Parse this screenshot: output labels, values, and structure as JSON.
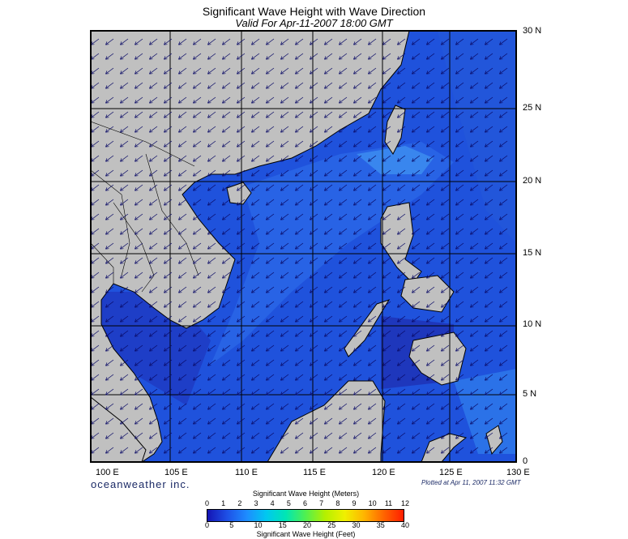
{
  "header": {
    "title": "Significant Wave Height with Wave Direction",
    "subtitle": "Valid For Apr-11-2007 18:00 GMT"
  },
  "map": {
    "lat_labels": [
      "30 N",
      "25 N",
      "20 N",
      "15 N",
      "10 N",
      "5 N",
      "0"
    ],
    "lon_labels": [
      "100 E",
      "105 E",
      "110 E",
      "115 E",
      "120 E",
      "125 E",
      "130 E"
    ],
    "land_color": "#c0c0c0",
    "sea_color": "#1f52dc",
    "deep_color": "#1e2ba8",
    "highlight_color": "#3d8ff0",
    "dominant_wave_direction": "toward southwest"
  },
  "footer": {
    "brand": "oceanweather inc.",
    "plotted": "Plotted at Apr 11, 2007 11:32 GMT"
  },
  "legend": {
    "title_top": "Significant Wave Height (Meters)",
    "meters": [
      "0",
      "1",
      "2",
      "3",
      "4",
      "5",
      "6",
      "7",
      "8",
      "9",
      "10",
      "11",
      "12"
    ],
    "feet": [
      "0",
      "5",
      "10",
      "15",
      "20",
      "25",
      "30",
      "35",
      "40"
    ],
    "title_bottom": "Significant Wave Height (Feet)",
    "colors": [
      "#1414b4",
      "#1e50e6",
      "#1e8cff",
      "#00c8f0",
      "#00e6b4",
      "#50f050",
      "#b4f000",
      "#f0f000",
      "#ffb400",
      "#ff6400",
      "#ff1e00"
    ]
  }
}
